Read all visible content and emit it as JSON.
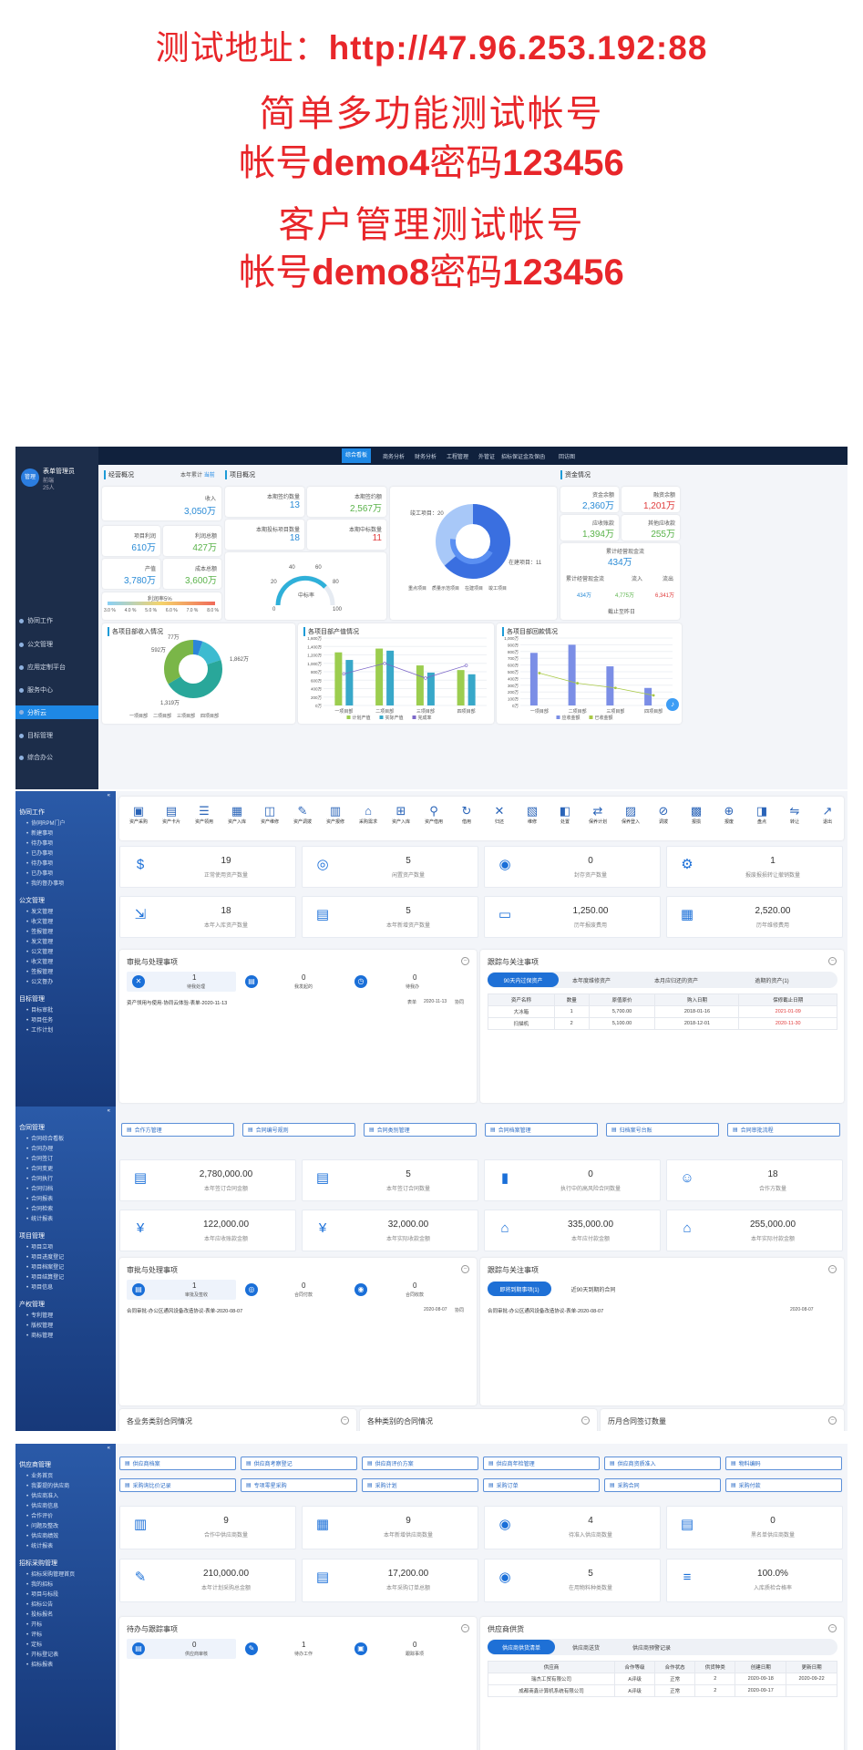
{
  "header": {
    "line1_prefix": "测试地址：",
    "line1_url": "http://47.96.253.192:88",
    "line2": "简单多功能测试帐号",
    "line3_a": "帐号",
    "line3_b": "demo4",
    "line3_c": "密码",
    "line3_d": "123456",
    "line4": "客户管理测试帐号",
    "line5_a": "帐号",
    "line5_b": "demo8",
    "line5_c": "密码",
    "line5_d": "123456"
  },
  "s1": {
    "user": {
      "name": "表单管理员",
      "dept": "前端",
      "age": "25人",
      "avatar": "管理"
    },
    "top_tabs": [
      "综合看板",
      "商务分析",
      "财务分析",
      "工程管理",
      "外管证",
      "招标保证金及保函",
      "回访图"
    ],
    "nav": [
      "协同工作",
      "公文管理",
      "应用定制平台",
      "服务中心",
      "分析云",
      "目标管理",
      "综合办公"
    ],
    "active_nav": "分析云",
    "overview_title": "经营概况",
    "overview_filter": "本年累计",
    "overview_filter_v": "当前",
    "income_l": "收入",
    "income_v": "3,050万",
    "plan_l": "项目利润",
    "plan_v": "610万",
    "profit_l": "利润总额",
    "profit_v": "427万",
    "output_l": "产值",
    "output_v": "3,780万",
    "cost_l": "成本总额",
    "cost_v": "3,600万",
    "rate_l": "利润率5%",
    "rate_ticks": [
      "3.0 %",
      "4.0 %",
      "5.0 %",
      "6.0 %",
      "7.0 %",
      "8.0 %"
    ],
    "proj_title": "项目概况",
    "p1_l": "本期签约数量",
    "p1_v": "13",
    "p2_l": "本期签约额",
    "p2_v": "2,567万",
    "p3_l": "本期投标项目数量",
    "p3_v": "18",
    "p4_l": "本期中标数量",
    "p4_v": "11",
    "gauge_l": "中标率",
    "gauge_ticks": [
      "0",
      "20",
      "40",
      "60",
      "80",
      "100"
    ],
    "donut_l1": "竣工项目：20",
    "donut_l2": "在建项目：11",
    "donut_legend": [
      "重点项目",
      "质量示范项目",
      "在建项目",
      "竣工项目"
    ],
    "fund_title": "资金情况",
    "f1_l": "资金余额",
    "f1_v": "2,360万",
    "f2_l": "融资余额",
    "f2_v": "1,201万",
    "f3_l": "应收账款",
    "f3_v": "1,394万",
    "f4_l": "其他应收款",
    "f4_v": "255万",
    "f5_l": "累计经营现金流",
    "f5_v": "434万",
    "f6_l": "累计经营现金流",
    "f6_a": "流入",
    "f6_b": "流出",
    "f6_v1": "434万",
    "f6_v2": "4,775万",
    "f6_v3": "6,341万",
    "f6_date": "截止至昨日",
    "c1_title": "各项目部收入情况",
    "c1_labels": [
      "77万",
      "592万",
      "1,862万",
      "1,319万"
    ],
    "c1_legend": [
      "一项目部",
      "二项目部",
      "三项目部",
      "四项目部"
    ],
    "c2_title": "各项目部产值情况",
    "c2_y": [
      "1,600万",
      "1,400万",
      "1,200万",
      "1,000万",
      "800万",
      "600万",
      "400万",
      "200万",
      "0万"
    ],
    "c2_x": [
      "一项目部",
      "二项目部",
      "三项目部",
      "四项目部"
    ],
    "c2_legend": [
      "计划产值",
      "实际产值",
      "完成率"
    ],
    "c3_title": "各项目部回款情况",
    "c3_y": [
      "1,000万",
      "900万",
      "800万",
      "700万",
      "600万",
      "500万",
      "400万",
      "300万",
      "200万",
      "100万",
      "0万"
    ],
    "c3_x": [
      "一项目部",
      "二项目部",
      "三项目部",
      "四项目部"
    ],
    "c3_legend": [
      "应收金额",
      "已收金额"
    ]
  },
  "s2": {
    "side": [
      {
        "h": "协同工作",
        "items": [
          "协同RPM门户",
          "新建事项",
          "待办事项",
          "已办事项",
          "待办事项",
          "已办事项",
          "我的督办事项"
        ]
      },
      {
        "h": "公文管理",
        "items": [
          "发文管理",
          "收文管理",
          "签报管理",
          "发文管理",
          "公文管理",
          "收文管理",
          "签报管理",
          "公文督办"
        ]
      },
      {
        "h": "目标管理",
        "items": [
          "目标审批",
          "项目任务",
          "工作计划"
        ]
      }
    ],
    "tools": [
      "资产采购",
      "资产卡片",
      "资产领用",
      "资产入库",
      "资产维修",
      "资产调拨",
      "资产报修",
      "采购需求",
      "资产入库",
      "资产借用",
      "借用",
      "归还",
      "维修",
      "处置",
      "保养计划",
      "保养登入",
      "调拨",
      "报损",
      "报废",
      "盘点",
      "转让",
      "退出"
    ],
    "stats": [
      {
        "n": "19",
        "c": "正常使用资产数量"
      },
      {
        "n": "5",
        "c": "闲置资产数量"
      },
      {
        "n": "0",
        "c": "封存资产数量"
      },
      {
        "n": "1",
        "c": "报废报损转让撤销数量"
      },
      {
        "n": "18",
        "c": "本年入库资产数量"
      },
      {
        "n": "5",
        "c": "本年新增资产数量"
      },
      {
        "n": "1,250.00",
        "c": "历年报废费用"
      },
      {
        "n": "2,520.00",
        "c": "历年维修费用"
      }
    ],
    "todo_title": "审批与处理事项",
    "todo": [
      {
        "n": "1",
        "c": "待我处理"
      },
      {
        "n": "0",
        "c": "我发起的"
      },
      {
        "n": "0",
        "c": "待我办"
      }
    ],
    "todo_row": "资产领用与使用-协同云体验-表单-2020-11-13",
    "todo_row_s": "表单",
    "todo_row_d": "2020-11-13",
    "todo_row_o": "协同",
    "watch_title": "跟踪与关注事项",
    "watch_tabs": [
      "90天内过保资产",
      "本年度维修资产",
      "本月应归还的资产",
      "逾期的资产(1)"
    ],
    "tbl_head": [
      "资产名称",
      "数量",
      "原值原价",
      "购入日期",
      "保修截止日期"
    ],
    "tbl": [
      [
        "大冰箱",
        "1",
        "5,700.00",
        "2018-01-16",
        "2021-01-09"
      ],
      [
        "扫描机",
        "2",
        "5,100.00",
        "2018-12-01",
        "2020-11-30"
      ]
    ]
  },
  "s3": {
    "side": [
      {
        "h": "合同管理",
        "items": [
          "合同综合看板",
          "合同办理",
          "合同签订",
          "合同变更",
          "合同执行",
          "合同归档",
          "合同报表",
          "合同检索",
          "统计报表"
        ]
      },
      {
        "h": "项目管理",
        "items": [
          "项目立项",
          "项目进度登记",
          "项目档案登记",
          "项目结算登记",
          "项目信息"
        ]
      },
      {
        "h": "产权管理",
        "items": [
          "专利管理",
          "版权管理",
          "商标管理"
        ]
      }
    ],
    "top_btns": [
      "合作方管理",
      "合同编号规则",
      "合同类别管理",
      "合同档案管理",
      "归档案号台账",
      "合同审批流程"
    ],
    "stats": [
      {
        "n": "2,780,000.00",
        "c": "本年签订合同金额"
      },
      {
        "n": "5",
        "c": "本年签订合同数量"
      },
      {
        "n": "0",
        "c": "执行中的高风险合同数量"
      },
      {
        "n": "18",
        "c": "合作方数量"
      },
      {
        "n": "122,000.00",
        "c": "本年应收账款金额"
      },
      {
        "n": "32,000.00",
        "c": "本年实际收款金额"
      },
      {
        "n": "335,000.00",
        "c": "本年应付款金额"
      },
      {
        "n": "255,000.00",
        "c": "本年实际付款金额"
      }
    ],
    "todo_title": "审批与处理事项",
    "todo": [
      {
        "n": "1",
        "c": "审批及签收"
      },
      {
        "n": "0",
        "c": "合同付款"
      },
      {
        "n": "0",
        "c": "合同收款"
      }
    ],
    "todo_row": "合同审批-办公区通风设备改造协议-表单-2020-08-07",
    "todo_row_d": "2020-08-07",
    "todo_row_o": "协同",
    "watch_title": "跟踪与关注事项",
    "watch_tabs": [
      "即将到期事项(1)",
      "近90天到期的合同"
    ],
    "watch_row": "合同审批-办公区通风设备改造协议-表单-2020-08-07",
    "watch_row_d": "2020-08-07",
    "bottom": [
      "各业务类别合同情况",
      "各种类别的合同情况",
      "历月合同签订数量"
    ]
  },
  "s4": {
    "side": [
      {
        "h": "供应商管理",
        "items": [
          "业务首页",
          "我要提的供应商",
          "供应商准入",
          "供应商信息",
          "合作评价",
          "问题及整改",
          "供应商绩效",
          "统计报表"
        ]
      },
      {
        "h": "招标采购管理",
        "items": [
          "招标采购管理首页",
          "我的招标",
          "项目与标段",
          "招标公告",
          "投标报名",
          "开标",
          "评标",
          "定标",
          "开标登记表",
          "招标报表"
        ]
      }
    ],
    "btns1": [
      "供应商档案",
      "供应商考察登记",
      "供应商评价方案",
      "供应商年检管理",
      "供应商资质准入",
      "物料编码"
    ],
    "btns2": [
      "采购询比价记录",
      "专项零星采购",
      "采购计划",
      "采购订单",
      "采购合同",
      "采购付款"
    ],
    "stats": [
      {
        "n": "9",
        "c": "合作中供应商数量"
      },
      {
        "n": "9",
        "c": "本年新增供应商数量"
      },
      {
        "n": "4",
        "c": "待准入供应商数量"
      },
      {
        "n": "0",
        "c": "黑名单供应商数量"
      },
      {
        "n": "210,000.00",
        "c": "本年计划采购总金额"
      },
      {
        "n": "17,200.00",
        "c": "本年采购订单总额"
      },
      {
        "n": "5",
        "c": "在用物料种类数量"
      },
      {
        "n": "100.0%",
        "c": "入库质检合格率"
      }
    ],
    "todo_title": "待办与跟踪事项",
    "todo": [
      {
        "n": "0",
        "c": "供应商审核"
      },
      {
        "n": "1",
        "c": "待办工作"
      },
      {
        "n": "0",
        "c": "跟踪事项"
      }
    ],
    "supp_title": "供应商供货",
    "supp_tabs": [
      "供应商供货清单",
      "供应商送货",
      "供应商预警记录"
    ],
    "tbl_head": [
      "供应商",
      "合作等级",
      "合作状态",
      "供货种类",
      "创建日期",
      "更新日期"
    ],
    "tbl": [
      [
        "瑞杰工贸有限公司",
        "A评级",
        "正常",
        "2",
        "2020-09-18",
        "2020-09-22"
      ],
      [
        "成都商鑫计算机系统有限公司",
        "A评级",
        "正常",
        "2",
        "2020-09-17",
        ""
      ]
    ]
  },
  "colors": {
    "accent": "#1e70d6",
    "sidebar_dark": "#1c2d4a",
    "header_red": "#e8262a"
  }
}
